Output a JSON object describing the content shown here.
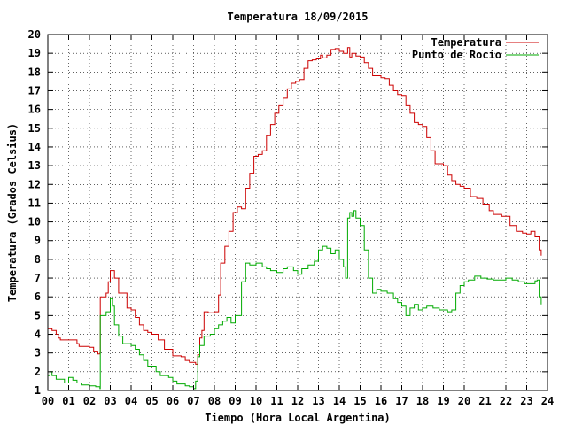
{
  "chart_data": {
    "type": "line",
    "title": "Temperatura 18/09/2015",
    "xlabel": "Tiempo (Hora Local Argentina)",
    "ylabel": "Temperatura (Grados Celsius)",
    "xlim": [
      0,
      24
    ],
    "ylim": [
      1,
      20
    ],
    "x_ticks": [
      "00",
      "01",
      "02",
      "03",
      "04",
      "05",
      "06",
      "07",
      "08",
      "09",
      "10",
      "11",
      "12",
      "13",
      "14",
      "15",
      "16",
      "17",
      "18",
      "19",
      "20",
      "21",
      "22",
      "23",
      "24"
    ],
    "y_ticks": [
      "1",
      "2",
      "3",
      "4",
      "5",
      "6",
      "7",
      "8",
      "9",
      "10",
      "11",
      "12",
      "13",
      "14",
      "15",
      "16",
      "17",
      "18",
      "19",
      "20"
    ],
    "grid": true,
    "legend_position": "top-right",
    "series": [
      {
        "name": "Temperatura",
        "color": "#cc0000",
        "x": [
          0.0,
          0.1,
          0.2,
          0.4,
          0.5,
          0.6,
          1.0,
          1.4,
          1.5,
          2.0,
          2.2,
          2.4,
          2.5,
          2.52,
          2.8,
          2.9,
          3.0,
          3.2,
          3.4,
          3.8,
          4.0,
          4.2,
          4.4,
          4.6,
          4.8,
          5.0,
          5.3,
          5.6,
          6.0,
          6.4,
          6.6,
          6.8,
          7.0,
          7.1,
          7.2,
          7.3,
          7.4,
          7.5,
          7.7,
          8.0,
          8.2,
          8.3,
          8.5,
          8.7,
          8.9,
          9.1,
          9.3,
          9.5,
          9.7,
          9.9,
          10.1,
          10.3,
          10.5,
          10.7,
          10.9,
          11.1,
          11.3,
          11.5,
          11.7,
          11.9,
          12.1,
          12.3,
          12.5,
          12.7,
          12.9,
          13.1,
          13.2,
          13.4,
          13.6,
          13.8,
          14.0,
          14.2,
          14.4,
          14.5,
          14.6,
          14.8,
          15.0,
          15.2,
          15.4,
          15.6,
          15.8,
          16.0,
          16.2,
          16.4,
          16.6,
          16.8,
          17.0,
          17.2,
          17.4,
          17.6,
          17.8,
          18.0,
          18.2,
          18.4,
          18.6,
          18.8,
          19.0,
          19.2,
          19.4,
          19.6,
          19.8,
          20.0,
          20.3,
          20.6,
          20.9,
          21.2,
          21.4,
          21.6,
          21.8,
          22.0,
          22.2,
          22.5,
          22.8,
          23.0,
          23.2,
          23.4,
          23.6,
          23.7
        ],
        "y": [
          4.3,
          4.3,
          4.2,
          4.0,
          3.8,
          3.7,
          3.7,
          3.5,
          3.35,
          3.3,
          3.1,
          2.95,
          3.0,
          6.0,
          6.2,
          6.8,
          7.4,
          7.0,
          6.2,
          5.4,
          5.3,
          4.9,
          4.5,
          4.2,
          4.1,
          4.0,
          3.7,
          3.2,
          2.85,
          2.8,
          2.6,
          2.5,
          2.5,
          2.4,
          2.9,
          3.8,
          4.2,
          5.2,
          5.15,
          5.2,
          6.1,
          7.8,
          8.7,
          9.5,
          10.5,
          10.8,
          10.7,
          11.8,
          12.6,
          13.5,
          13.6,
          13.8,
          14.6,
          15.2,
          15.8,
          16.2,
          16.6,
          17.1,
          17.4,
          17.5,
          17.6,
          18.2,
          18.6,
          18.65,
          18.7,
          18.9,
          18.75,
          18.9,
          19.2,
          19.25,
          19.1,
          19.0,
          19.3,
          18.8,
          19.0,
          18.85,
          18.8,
          18.5,
          18.2,
          17.8,
          17.8,
          17.7,
          17.65,
          17.3,
          17.0,
          16.8,
          16.75,
          16.2,
          15.8,
          15.3,
          15.2,
          15.1,
          14.5,
          13.8,
          13.1,
          13.1,
          13.0,
          12.5,
          12.2,
          12.0,
          11.9,
          11.8,
          11.35,
          11.25,
          10.95,
          10.6,
          10.4,
          10.4,
          10.3,
          10.3,
          9.8,
          9.5,
          9.4,
          9.35,
          9.5,
          9.2,
          8.5,
          8.2
        ]
      },
      {
        "name": "Punto de Rocío",
        "color": "#00aa00",
        "x": [
          0.0,
          0.1,
          0.2,
          0.4,
          0.6,
          0.8,
          1.0,
          1.2,
          1.4,
          1.6,
          1.8,
          2.0,
          2.3,
          2.5,
          2.52,
          2.8,
          3.0,
          3.1,
          3.2,
          3.4,
          3.6,
          4.0,
          4.2,
          4.4,
          4.6,
          4.8,
          5.0,
          5.2,
          5.4,
          5.8,
          6.0,
          6.2,
          6.4,
          6.6,
          6.8,
          7.0,
          7.1,
          7.2,
          7.3,
          7.5,
          7.8,
          8.0,
          8.2,
          8.4,
          8.6,
          8.8,
          9.0,
          9.3,
          9.5,
          9.7,
          10.0,
          10.3,
          10.5,
          10.7,
          11.0,
          11.3,
          11.5,
          11.8,
          12.0,
          12.2,
          12.5,
          12.8,
          13.0,
          13.2,
          13.4,
          13.6,
          13.8,
          14.0,
          14.2,
          14.3,
          14.4,
          14.5,
          14.6,
          14.7,
          14.8,
          15.0,
          15.2,
          15.4,
          15.6,
          15.8,
          16.0,
          16.3,
          16.6,
          16.8,
          17.0,
          17.2,
          17.4,
          17.6,
          17.8,
          18.0,
          18.2,
          18.5,
          18.8,
          19.0,
          19.2,
          19.4,
          19.6,
          19.8,
          20.0,
          20.2,
          20.5,
          20.8,
          21.1,
          21.4,
          21.7,
          22.0,
          22.3,
          22.6,
          22.9,
          23.2,
          23.4,
          23.5,
          23.6,
          23.7
        ],
        "y": [
          1.8,
          2.0,
          1.8,
          1.6,
          1.6,
          1.4,
          1.7,
          1.55,
          1.4,
          1.3,
          1.3,
          1.25,
          1.2,
          1.1,
          5.0,
          5.2,
          5.9,
          5.5,
          4.5,
          3.9,
          3.5,
          3.4,
          3.2,
          2.9,
          2.6,
          2.3,
          2.3,
          2.0,
          1.8,
          1.7,
          1.5,
          1.35,
          1.35,
          1.25,
          1.2,
          1.1,
          1.5,
          2.8,
          3.4,
          3.9,
          4.0,
          4.3,
          4.5,
          4.7,
          4.9,
          4.6,
          5.0,
          6.8,
          7.8,
          7.7,
          7.8,
          7.6,
          7.5,
          7.4,
          7.3,
          7.5,
          7.6,
          7.4,
          7.2,
          7.5,
          7.7,
          7.9,
          8.5,
          8.7,
          8.6,
          8.3,
          8.5,
          8.0,
          7.6,
          7.0,
          10.2,
          10.5,
          10.3,
          10.6,
          10.2,
          9.8,
          8.5,
          7.0,
          6.2,
          6.4,
          6.3,
          6.2,
          5.9,
          5.7,
          5.5,
          5.0,
          5.4,
          5.6,
          5.3,
          5.4,
          5.5,
          5.4,
          5.3,
          5.3,
          5.2,
          5.3,
          6.2,
          6.6,
          6.8,
          6.9,
          7.1,
          7.0,
          6.95,
          6.9,
          6.9,
          7.0,
          6.9,
          6.8,
          6.7,
          6.7,
          6.85,
          6.9,
          6.0,
          5.6
        ]
      }
    ]
  }
}
